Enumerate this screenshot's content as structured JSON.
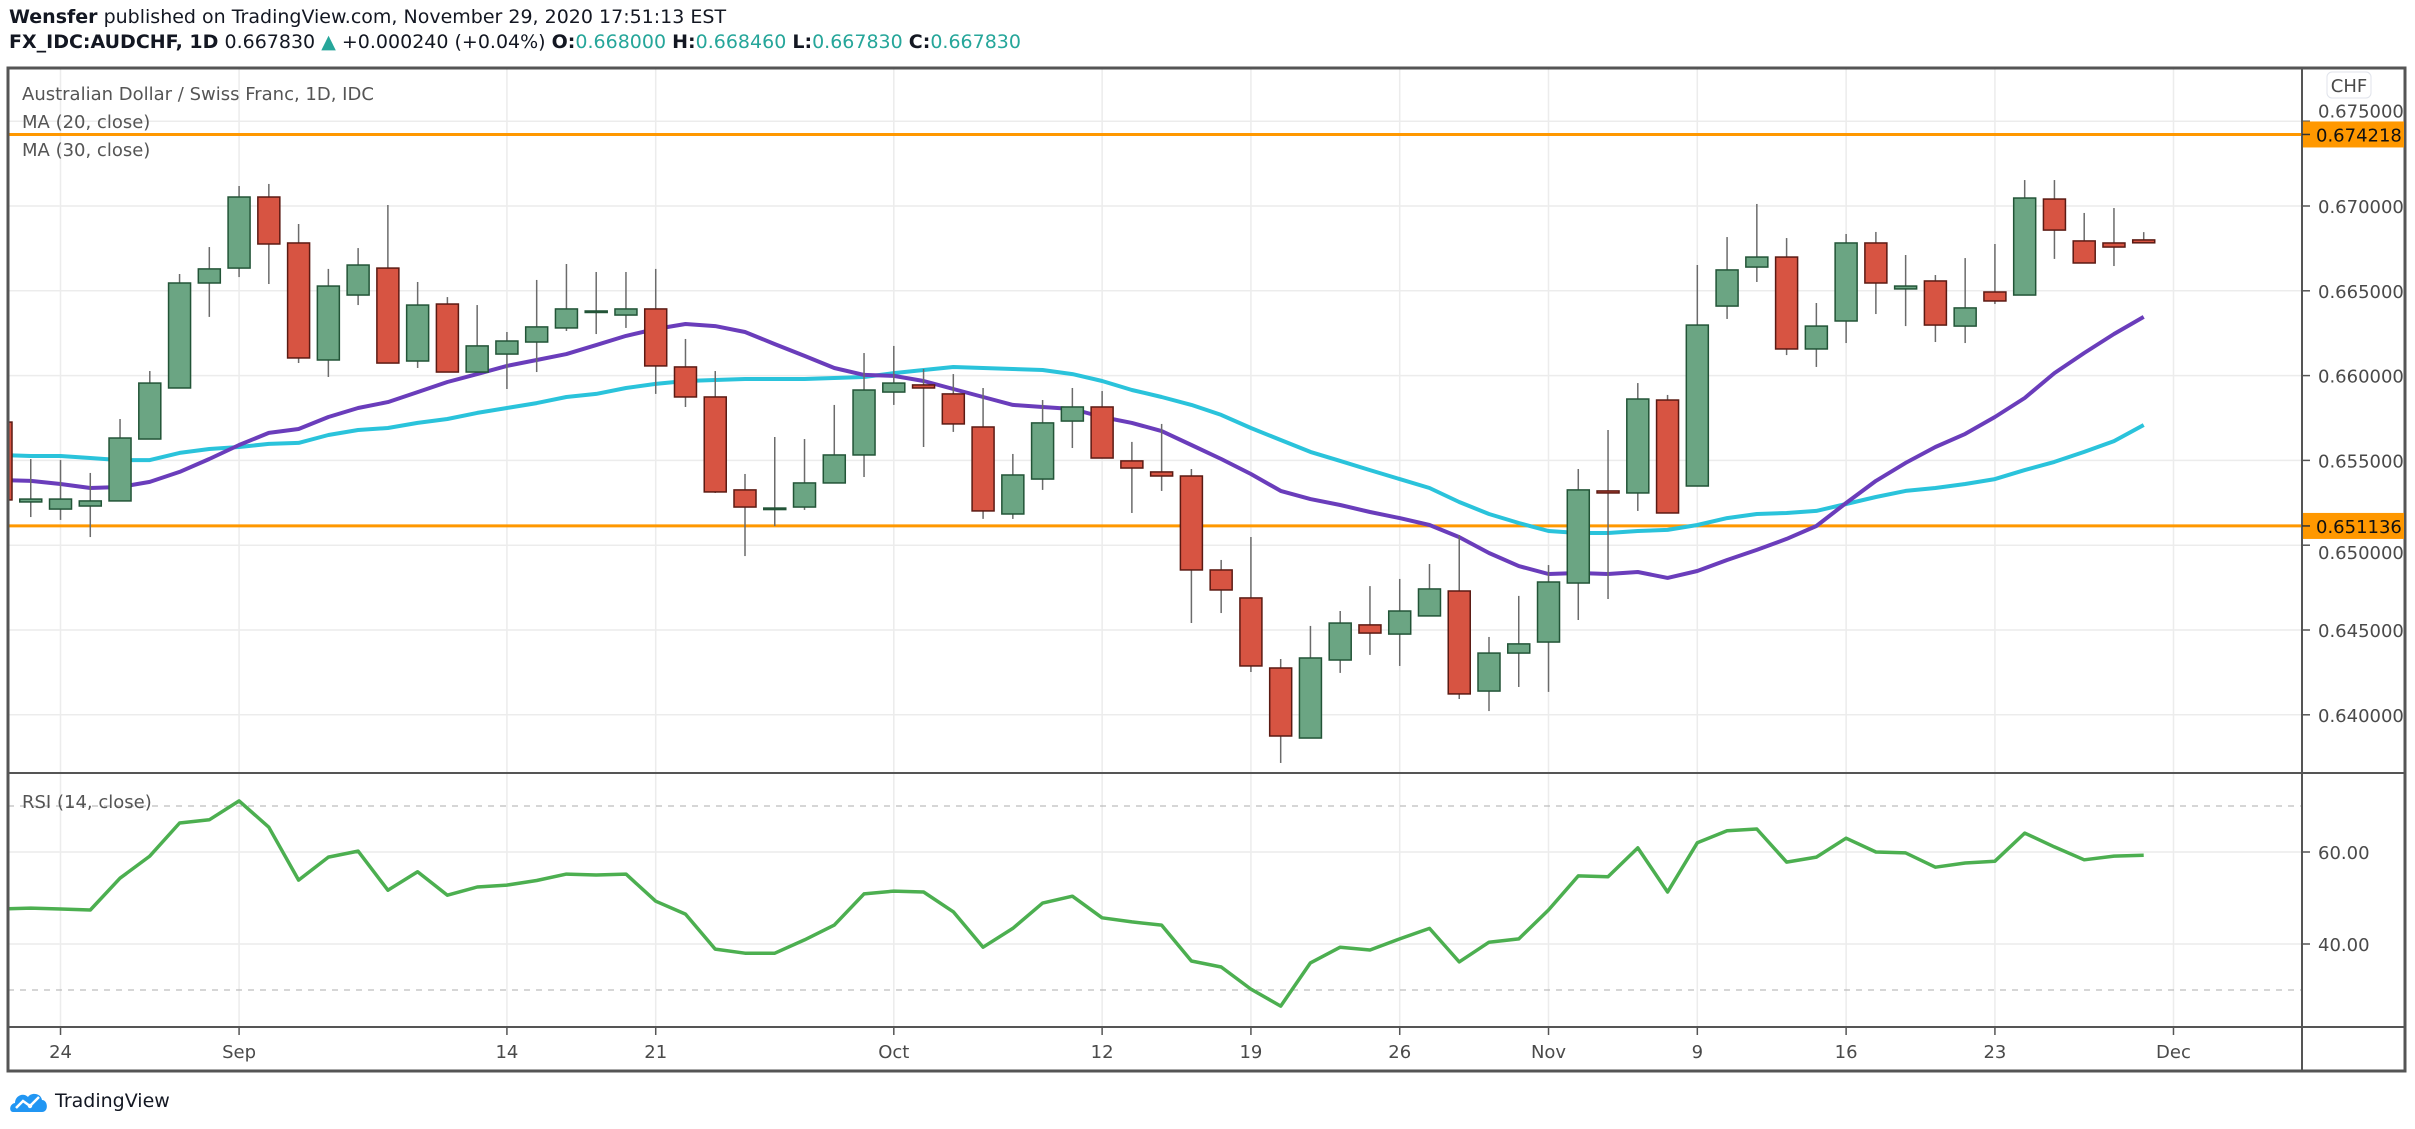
{
  "header": {
    "author": "Wensfer",
    "published_text": "published on TradingView.com, November 29, 2020 17:51:13 EST",
    "symbol": "FX_IDC:AUDCHF, 1D",
    "last_price": "0.667830",
    "change_icon": "triangle-up-icon",
    "change": "+0.000240 (+0.04%)",
    "open_label": "O:",
    "open": "0.668000",
    "high_label": "H:",
    "high": "0.668460",
    "low_label": "L:",
    "low": "0.667830",
    "close_label": "C:",
    "close": "0.667830"
  },
  "footer": {
    "logo_icon": "tradingview-logo-icon",
    "logo_text": "TradingView"
  },
  "colors": {
    "up": "#6ba583",
    "up_border": "#225437",
    "down": "#d75442",
    "down_border": "#5b1a13",
    "ma20": "#6a3dbb",
    "ma30": "#2ac3db",
    "rsi": "#4caf50",
    "hline": "#ff9800",
    "teal": "#26a69a"
  },
  "chart_data": {
    "type": "candlestick",
    "title": "Australian Dollar / Swiss Franc, 1D, IDC",
    "currency": "CHF",
    "legend": [
      "MA (20, close)",
      "MA (30, close)"
    ],
    "ylim": [
      0.63657,
      0.67814
    ],
    "y_ticks": [
      "0.640000",
      "0.645000",
      "0.650000",
      "0.655000",
      "0.660000",
      "0.665000",
      "0.670000",
      "0.675000"
    ],
    "y_tick_values": [
      0.64,
      0.645,
      0.65,
      0.655,
      0.66,
      0.665,
      0.67,
      0.675
    ],
    "grid": true,
    "horizontal_lines": [
      {
        "value": 0.674218,
        "label": "0.674218"
      },
      {
        "value": 0.651136,
        "label": "0.651136"
      }
    ],
    "x_ticks": [
      {
        "label": "24",
        "date": "2020-08-24"
      },
      {
        "label": "Sep",
        "date": "2020-09-01"
      },
      {
        "label": "14",
        "date": "2020-09-14"
      },
      {
        "label": "21",
        "date": "2020-09-21"
      },
      {
        "label": "Oct",
        "date": "2020-10-01"
      },
      {
        "label": "12",
        "date": "2020-10-12"
      },
      {
        "label": "19",
        "date": "2020-10-19"
      },
      {
        "label": "26",
        "date": "2020-10-26"
      },
      {
        "label": "Nov",
        "date": "2020-11-02"
      },
      {
        "label": "9",
        "date": "2020-11-09"
      },
      {
        "label": "16",
        "date": "2020-11-16"
      },
      {
        "label": "23",
        "date": "2020-11-23"
      },
      {
        "label": "Dec",
        "date": "2020-12-01"
      }
    ],
    "candles": [
      {
        "date": "2020-08-20",
        "o": 0.65726,
        "h": 0.65726,
        "l": 0.65267,
        "c": 0.65267
      },
      {
        "date": "2020-08-21",
        "o": 0.65255,
        "h": 0.65508,
        "l": 0.65166,
        "c": 0.65272
      },
      {
        "date": "2020-08-24",
        "o": 0.65213,
        "h": 0.65502,
        "l": 0.65149,
        "c": 0.65272
      },
      {
        "date": "2020-08-25",
        "o": 0.65231,
        "h": 0.65426,
        "l": 0.65048,
        "c": 0.65261
      },
      {
        "date": "2020-08-26",
        "o": 0.65261,
        "h": 0.65744,
        "l": 0.65261,
        "c": 0.65632
      },
      {
        "date": "2020-08-27",
        "o": 0.65626,
        "h": 0.66027,
        "l": 0.65626,
        "c": 0.65956
      },
      {
        "date": "2020-08-28",
        "o": 0.65927,
        "h": 0.66599,
        "l": 0.65927,
        "c": 0.66546
      },
      {
        "date": "2020-08-31",
        "o": 0.66546,
        "h": 0.66758,
        "l": 0.66346,
        "c": 0.66629
      },
      {
        "date": "2020-09-01",
        "o": 0.66634,
        "h": 0.67118,
        "l": 0.66581,
        "c": 0.67053
      },
      {
        "date": "2020-09-02",
        "o": 0.67053,
        "h": 0.6713,
        "l": 0.6654,
        "c": 0.66776
      },
      {
        "date": "2020-09-03",
        "o": 0.66782,
        "h": 0.66894,
        "l": 0.66074,
        "c": 0.66104
      },
      {
        "date": "2020-09-04",
        "o": 0.66092,
        "h": 0.66629,
        "l": 0.65992,
        "c": 0.66528
      },
      {
        "date": "2020-09-07",
        "o": 0.66475,
        "h": 0.66752,
        "l": 0.66416,
        "c": 0.66652
      },
      {
        "date": "2020-09-08",
        "o": 0.66634,
        "h": 0.67006,
        "l": 0.66074,
        "c": 0.66074
      },
      {
        "date": "2020-09-09",
        "o": 0.66086,
        "h": 0.66552,
        "l": 0.66045,
        "c": 0.66416
      },
      {
        "date": "2020-09-10",
        "o": 0.66422,
        "h": 0.66463,
        "l": 0.66021,
        "c": 0.66021
      },
      {
        "date": "2020-09-11",
        "o": 0.66021,
        "h": 0.66416,
        "l": 0.66021,
        "c": 0.66175
      },
      {
        "date": "2020-09-14",
        "o": 0.66127,
        "h": 0.66257,
        "l": 0.65921,
        "c": 0.66204
      },
      {
        "date": "2020-09-15",
        "o": 0.66198,
        "h": 0.66564,
        "l": 0.66021,
        "c": 0.66287
      },
      {
        "date": "2020-09-16",
        "o": 0.66281,
        "h": 0.66658,
        "l": 0.66263,
        "c": 0.66393
      },
      {
        "date": "2020-09-17",
        "o": 0.66381,
        "h": 0.66611,
        "l": 0.66245,
        "c": 0.66381
      },
      {
        "date": "2020-09-18",
        "o": 0.66357,
        "h": 0.66611,
        "l": 0.66281,
        "c": 0.66393
      },
      {
        "date": "2020-09-21",
        "o": 0.66393,
        "h": 0.66629,
        "l": 0.65892,
        "c": 0.66057
      },
      {
        "date": "2020-09-22",
        "o": 0.66051,
        "h": 0.66216,
        "l": 0.65815,
        "c": 0.65874
      },
      {
        "date": "2020-09-23",
        "o": 0.65874,
        "h": 0.66027,
        "l": 0.65308,
        "c": 0.65314
      },
      {
        "date": "2020-09-24",
        "o": 0.65326,
        "h": 0.6542,
        "l": 0.64936,
        "c": 0.65225
      },
      {
        "date": "2020-09-25",
        "o": 0.65219,
        "h": 0.65638,
        "l": 0.65113,
        "c": 0.65219
      },
      {
        "date": "2020-09-28",
        "o": 0.65225,
        "h": 0.65626,
        "l": 0.65208,
        "c": 0.65367
      },
      {
        "date": "2020-09-29",
        "o": 0.65367,
        "h": 0.65827,
        "l": 0.65367,
        "c": 0.65532
      },
      {
        "date": "2020-09-30",
        "o": 0.65532,
        "h": 0.66133,
        "l": 0.65402,
        "c": 0.65915
      },
      {
        "date": "2020-10-01",
        "o": 0.65903,
        "h": 0.66175,
        "l": 0.65827,
        "c": 0.65956
      },
      {
        "date": "2020-10-02",
        "o": 0.65945,
        "h": 0.66039,
        "l": 0.65579,
        "c": 0.65927
      },
      {
        "date": "2020-10-05",
        "o": 0.65892,
        "h": 0.66009,
        "l": 0.65668,
        "c": 0.65715
      },
      {
        "date": "2020-10-06",
        "o": 0.65697,
        "h": 0.65927,
        "l": 0.65155,
        "c": 0.65202
      },
      {
        "date": "2020-10-07",
        "o": 0.65184,
        "h": 0.65538,
        "l": 0.65155,
        "c": 0.65414
      },
      {
        "date": "2020-10-08",
        "o": 0.6539,
        "h": 0.65856,
        "l": 0.65326,
        "c": 0.65721
      },
      {
        "date": "2020-10-09",
        "o": 0.65732,
        "h": 0.65927,
        "l": 0.65573,
        "c": 0.65815
      },
      {
        "date": "2020-10-12",
        "o": 0.65815,
        "h": 0.65909,
        "l": 0.65514,
        "c": 0.65514
      },
      {
        "date": "2020-10-13",
        "o": 0.65497,
        "h": 0.65609,
        "l": 0.6519,
        "c": 0.65455
      },
      {
        "date": "2020-10-14",
        "o": 0.65432,
        "h": 0.65715,
        "l": 0.6532,
        "c": 0.65408
      },
      {
        "date": "2020-10-15",
        "o": 0.65408,
        "h": 0.65449,
        "l": 0.64541,
        "c": 0.64854
      },
      {
        "date": "2020-10-16",
        "o": 0.64854,
        "h": 0.64913,
        "l": 0.646,
        "c": 0.64736
      },
      {
        "date": "2020-10-19",
        "o": 0.64689,
        "h": 0.65048,
        "l": 0.64252,
        "c": 0.64288
      },
      {
        "date": "2020-10-20",
        "o": 0.64276,
        "h": 0.64329,
        "l": 0.63716,
        "c": 0.63875
      },
      {
        "date": "2020-10-21",
        "o": 0.63863,
        "h": 0.64524,
        "l": 0.63863,
        "c": 0.64335
      },
      {
        "date": "2020-10-22",
        "o": 0.64323,
        "h": 0.64612,
        "l": 0.64247,
        "c": 0.64541
      },
      {
        "date": "2020-10-23",
        "o": 0.6453,
        "h": 0.64759,
        "l": 0.64353,
        "c": 0.64482
      },
      {
        "date": "2020-10-26",
        "o": 0.64476,
        "h": 0.64801,
        "l": 0.64288,
        "c": 0.64612
      },
      {
        "date": "2020-10-27",
        "o": 0.64583,
        "h": 0.64889,
        "l": 0.64583,
        "c": 0.64742
      },
      {
        "date": "2020-10-28",
        "o": 0.6473,
        "h": 0.6506,
        "l": 0.64093,
        "c": 0.64123
      },
      {
        "date": "2020-10-29",
        "o": 0.6414,
        "h": 0.64459,
        "l": 0.64022,
        "c": 0.64364
      },
      {
        "date": "2020-10-30",
        "o": 0.64364,
        "h": 0.64701,
        "l": 0.64164,
        "c": 0.64418
      },
      {
        "date": "2020-11-02",
        "o": 0.64429,
        "h": 0.64883,
        "l": 0.64135,
        "c": 0.64783
      },
      {
        "date": "2020-11-03",
        "o": 0.64777,
        "h": 0.65449,
        "l": 0.64559,
        "c": 0.65326
      },
      {
        "date": "2020-11-04",
        "o": 0.6532,
        "h": 0.65679,
        "l": 0.64683,
        "c": 0.65308
      },
      {
        "date": "2020-11-05",
        "o": 0.65308,
        "h": 0.65956,
        "l": 0.65202,
        "c": 0.65862
      },
      {
        "date": "2020-11-06",
        "o": 0.65856,
        "h": 0.65886,
        "l": 0.6519,
        "c": 0.6519
      },
      {
        "date": "2020-11-09",
        "o": 0.65349,
        "h": 0.66652,
        "l": 0.65349,
        "c": 0.66298
      },
      {
        "date": "2020-11-10",
        "o": 0.6641,
        "h": 0.66817,
        "l": 0.66334,
        "c": 0.66623
      },
      {
        "date": "2020-11-11",
        "o": 0.6664,
        "h": 0.67012,
        "l": 0.66552,
        "c": 0.66699
      },
      {
        "date": "2020-11-12",
        "o": 0.66699,
        "h": 0.66811,
        "l": 0.66121,
        "c": 0.66157
      },
      {
        "date": "2020-11-13",
        "o": 0.66157,
        "h": 0.66428,
        "l": 0.66051,
        "c": 0.66292
      },
      {
        "date": "2020-11-16",
        "o": 0.66322,
        "h": 0.66835,
        "l": 0.66192,
        "c": 0.66782
      },
      {
        "date": "2020-11-17",
        "o": 0.66782,
        "h": 0.66847,
        "l": 0.66363,
        "c": 0.66546
      },
      {
        "date": "2020-11-18",
        "o": 0.66511,
        "h": 0.66711,
        "l": 0.66292,
        "c": 0.66528
      },
      {
        "date": "2020-11-19",
        "o": 0.66558,
        "h": 0.66593,
        "l": 0.66198,
        "c": 0.66298
      },
      {
        "date": "2020-11-20",
        "o": 0.66292,
        "h": 0.66693,
        "l": 0.66192,
        "c": 0.66399
      },
      {
        "date": "2020-11-23",
        "o": 0.66493,
        "h": 0.66776,
        "l": 0.66422,
        "c": 0.6644
      },
      {
        "date": "2020-11-24",
        "o": 0.66475,
        "h": 0.67153,
        "l": 0.66475,
        "c": 0.67047
      },
      {
        "date": "2020-11-25",
        "o": 0.67041,
        "h": 0.67153,
        "l": 0.66688,
        "c": 0.66858
      },
      {
        "date": "2020-11-26",
        "o": 0.66794,
        "h": 0.66959,
        "l": 0.66664,
        "c": 0.66664
      },
      {
        "date": "2020-11-27",
        "o": 0.66782,
        "h": 0.66988,
        "l": 0.66646,
        "c": 0.66758
      },
      {
        "date": "2020-11-30",
        "o": 0.668,
        "h": 0.66846,
        "l": 0.66783,
        "c": 0.66783
      }
    ],
    "ma20": [
      0.65384,
      0.65379,
      0.65361,
      0.65337,
      0.65343,
      0.65373,
      0.65432,
      0.65508,
      0.65591,
      0.65662,
      0.65685,
      0.65756,
      0.65809,
      0.65844,
      0.65903,
      0.65962,
      0.66009,
      0.66057,
      0.66092,
      0.66127,
      0.6618,
      0.66234,
      0.66275,
      0.66304,
      0.66292,
      0.66257,
      0.66186,
      0.66116,
      0.66045,
      0.66004,
      0.65998,
      0.65968,
      0.65921,
      0.65874,
      0.65827,
      0.65815,
      0.65803,
      0.65756,
      0.65721,
      0.65673,
      0.65591,
      0.65508,
      0.6542,
      0.6532,
      0.65272,
      0.65237,
      0.65196,
      0.6516,
      0.65119,
      0.65048,
      0.64954,
      0.64877,
      0.6483,
      0.64836,
      0.6483,
      0.64842,
      0.64807,
      0.64848,
      0.64913,
      0.64972,
      0.65037,
      0.65113,
      0.65249,
      0.65379,
      0.65485,
      0.65579,
      0.65656,
      0.65756,
      0.65868,
      0.66015,
      0.66133,
      0.66245,
      0.66346
    ],
    "ma30": [
      0.65532,
      0.65526,
      0.65526,
      0.65514,
      0.65502,
      0.65502,
      0.65544,
      0.65567,
      0.65579,
      0.65597,
      0.65603,
      0.6565,
      0.65679,
      0.65691,
      0.65721,
      0.65744,
      0.6578,
      0.65809,
      0.65838,
      0.65874,
      0.65892,
      0.65927,
      0.65951,
      0.65968,
      0.65974,
      0.6598,
      0.6598,
      0.6598,
      0.65986,
      0.65992,
      0.66015,
      0.66033,
      0.66051,
      0.66045,
      0.66039,
      0.66033,
      0.66009,
      0.65968,
      0.65915,
      0.65874,
      0.65827,
      0.65768,
      0.65691,
      0.6562,
      0.6555,
      0.65497,
      0.65443,
      0.6539,
      0.65337,
      0.65255,
      0.65184,
      0.65131,
      0.65084,
      0.65072,
      0.65072,
      0.65084,
      0.6509,
      0.65119,
      0.6516,
      0.65184,
      0.6519,
      0.65202,
      0.65243,
      0.65284,
      0.6532,
      0.65337,
      0.65361,
      0.6539,
      0.65443,
      0.65491,
      0.6555,
      0.65614,
      0.65709
    ],
    "rsi": {
      "label": "RSI (14, close)",
      "ylim": [
        24.5,
        80.3
      ],
      "y_ticks": [
        "60.00",
        "40.00"
      ],
      "y_tick_values": [
        60,
        40
      ],
      "bands": [
        70,
        30
      ],
      "values": [
        47.6,
        47.8,
        47.6,
        47.4,
        54.3,
        59.1,
        66.3,
        67.0,
        71.1,
        65.4,
        53.9,
        58.9,
        60.2,
        51.7,
        55.7,
        50.6,
        52.4,
        52.8,
        53.8,
        55.2,
        55.0,
        55.2,
        49.3,
        46.5,
        38.9,
        38.0,
        38.0,
        40.9,
        44.1,
        50.9,
        51.5,
        51.3,
        47.0,
        39.3,
        43.4,
        48.9,
        50.4,
        45.7,
        44.8,
        44.1,
        36.3,
        35.0,
        30.2,
        26.5,
        35.9,
        39.3,
        38.7,
        41.1,
        43.4,
        36.1,
        40.4,
        41.1,
        47.4,
        54.8,
        54.6,
        60.9,
        51.3,
        62.0,
        64.6,
        65.0,
        57.8,
        58.9,
        63.0,
        60.0,
        59.8,
        56.7,
        57.6,
        58.0,
        64.1,
        61.1,
        58.3,
        59.1,
        59.3
      ]
    }
  }
}
